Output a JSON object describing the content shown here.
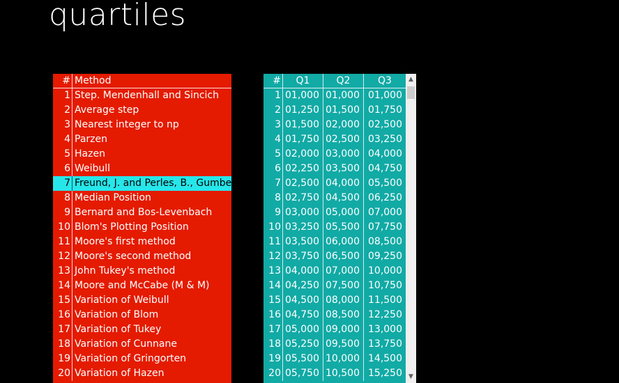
{
  "page": {
    "title": "quartiles"
  },
  "methods_table": {
    "headers": {
      "num": "#",
      "method": "Method"
    },
    "selected_index": 6,
    "rows": [
      {
        "num": "1",
        "method": "Step. Mendenhall and Sincich"
      },
      {
        "num": "2",
        "method": "Average step"
      },
      {
        "num": "3",
        "method": "Nearest integer to np"
      },
      {
        "num": "4",
        "method": "Parzen"
      },
      {
        "num": "5",
        "method": "Hazen"
      },
      {
        "num": "6",
        "method": "Weibull"
      },
      {
        "num": "7",
        "method": "Freund, J. and Perles, B., Gumbell"
      },
      {
        "num": "8",
        "method": "Median Position"
      },
      {
        "num": "9",
        "method": "Bernard and Bos-Levenbach"
      },
      {
        "num": "10",
        "method": "Blom's Plotting Position"
      },
      {
        "num": "11",
        "method": "Moore's first method"
      },
      {
        "num": "12",
        "method": "Moore's second method"
      },
      {
        "num": "13",
        "method": "John Tukey's method"
      },
      {
        "num": "14",
        "method": "Moore and McCabe (M & M)"
      },
      {
        "num": "15",
        "method": "Variation of Weibull"
      },
      {
        "num": "16",
        "method": "Variation of Blom"
      },
      {
        "num": "17",
        "method": "Variation of Tukey"
      },
      {
        "num": "18",
        "method": "Variation of Cunnane"
      },
      {
        "num": "19",
        "method": "Variation of Gringorten"
      },
      {
        "num": "20",
        "method": "Variation of Hazen"
      }
    ]
  },
  "quartiles_table": {
    "headers": {
      "num": "#",
      "q1": "Q1",
      "q2": "Q2",
      "q3": "Q3"
    },
    "rows": [
      {
        "num": "1",
        "q1": "01,000",
        "q2": "01,000",
        "q3": "01,000"
      },
      {
        "num": "2",
        "q1": "01,250",
        "q2": "01,500",
        "q3": "01,750"
      },
      {
        "num": "3",
        "q1": "01,500",
        "q2": "02,000",
        "q3": "02,500"
      },
      {
        "num": "4",
        "q1": "01,750",
        "q2": "02,500",
        "q3": "03,250"
      },
      {
        "num": "5",
        "q1": "02,000",
        "q2": "03,000",
        "q3": "04,000"
      },
      {
        "num": "6",
        "q1": "02,250",
        "q2": "03,500",
        "q3": "04,750"
      },
      {
        "num": "7",
        "q1": "02,500",
        "q2": "04,000",
        "q3": "05,500"
      },
      {
        "num": "8",
        "q1": "02,750",
        "q2": "04,500",
        "q3": "06,250"
      },
      {
        "num": "9",
        "q1": "03,000",
        "q2": "05,000",
        "q3": "07,000"
      },
      {
        "num": "10",
        "q1": "03,250",
        "q2": "05,500",
        "q3": "07,750"
      },
      {
        "num": "11",
        "q1": "03,500",
        "q2": "06,000",
        "q3": "08,500"
      },
      {
        "num": "12",
        "q1": "03,750",
        "q2": "06,500",
        "q3": "09,250"
      },
      {
        "num": "13",
        "q1": "04,000",
        "q2": "07,000",
        "q3": "10,000"
      },
      {
        "num": "14",
        "q1": "04,250",
        "q2": "07,500",
        "q3": "10,750"
      },
      {
        "num": "15",
        "q1": "04,500",
        "q2": "08,000",
        "q3": "11,500"
      },
      {
        "num": "16",
        "q1": "04,750",
        "q2": "08,500",
        "q3": "12,250"
      },
      {
        "num": "17",
        "q1": "05,000",
        "q2": "09,000",
        "q3": "13,000"
      },
      {
        "num": "18",
        "q1": "05,250",
        "q2": "09,500",
        "q3": "13,750"
      },
      {
        "num": "19",
        "q1": "05,500",
        "q2": "10,000",
        "q3": "14,500"
      },
      {
        "num": "20",
        "q1": "05,750",
        "q2": "10,500",
        "q3": "15,250"
      }
    ]
  },
  "scrollbar": {
    "up_icon": "▲",
    "down_icon": "▼"
  },
  "colors": {
    "methods_bg": "#e41b00",
    "quartiles_bg": "#12aaa5",
    "selected_bg": "#27e6ea"
  }
}
